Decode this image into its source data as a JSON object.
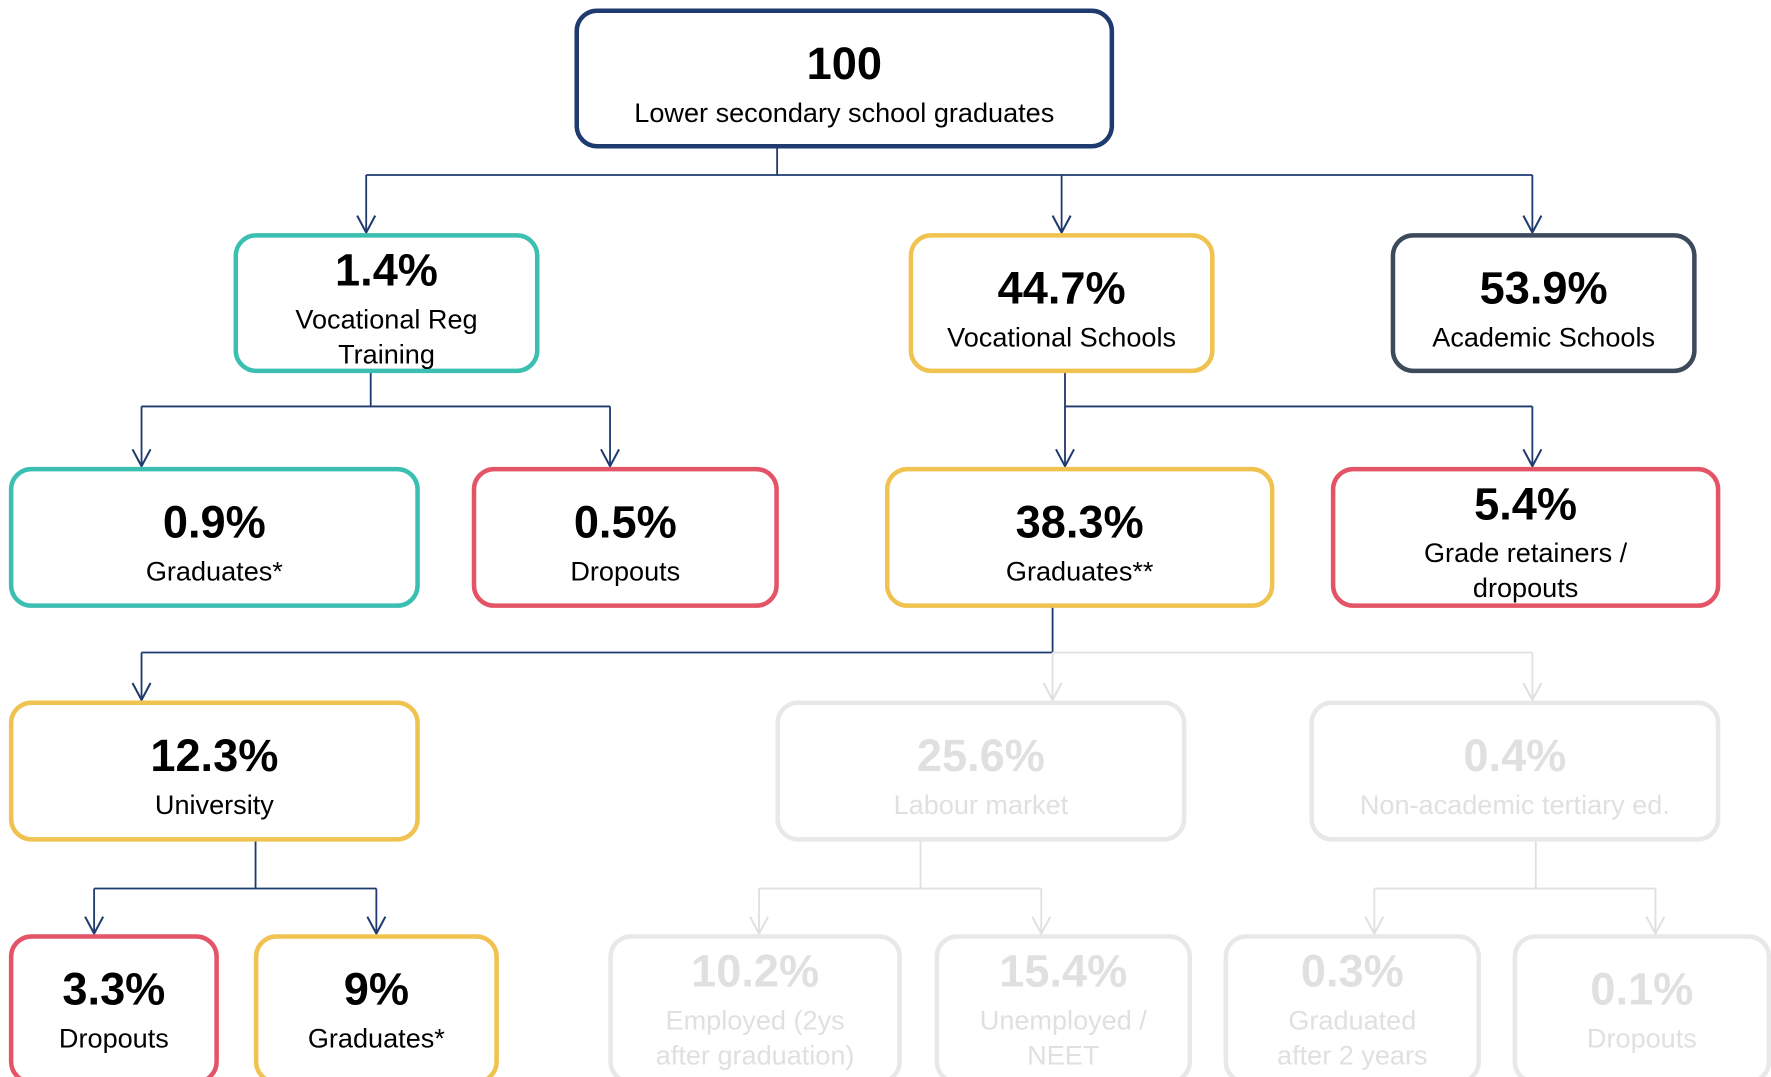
{
  "nodes": [
    {
      "value": "100",
      "label": [
        "Lower secondary school graduates"
      ],
      "color": "#1f3a6e",
      "text_color": "#000000"
    },
    {
      "value": "1.4%",
      "label": [
        "Vocational Reg",
        "Training"
      ],
      "color": "#3bbfb0",
      "text_color": "#000000"
    },
    {
      "value": "44.7%",
      "label": [
        "Vocational Schools"
      ],
      "color": "#f0c24f",
      "text_color": "#000000"
    },
    {
      "value": "53.9%",
      "label": [
        "Academic Schools"
      ],
      "color": "#3d4a5c",
      "text_color": "#000000"
    },
    {
      "value": "0.9%",
      "label": [
        "Graduates*"
      ],
      "color": "#3bbfb0",
      "text_color": "#000000"
    },
    {
      "value": "0.5%",
      "label": [
        "Dropouts"
      ],
      "color": "#e35466",
      "text_color": "#000000"
    },
    {
      "value": "38.3%",
      "label": [
        "Graduates**"
      ],
      "color": "#f0c24f",
      "text_color": "#000000"
    },
    {
      "value": "5.4%",
      "label": [
        "Grade retainers /",
        "dropouts"
      ],
      "color": "#e35466",
      "text_color": "#000000"
    },
    {
      "value": "12.3%",
      "label": [
        "University"
      ],
      "color": "#f0c24f",
      "text_color": "#000000"
    },
    {
      "value": "25.6%",
      "label": [
        "Labour market"
      ],
      "color": "#e8e8e8",
      "text_color": "#e0e0e0"
    },
    {
      "value": "0.4%",
      "label": [
        "Non-academic tertiary ed."
      ],
      "color": "#e8e8e8",
      "text_color": "#e0e0e0"
    },
    {
      "value": "3.3%",
      "label": [
        "Dropouts"
      ],
      "color": "#e35466",
      "text_color": "#000000"
    },
    {
      "value": "9%",
      "label": [
        "Graduates*"
      ],
      "color": "#f0c24f",
      "text_color": "#000000"
    },
    {
      "value": "10.2%",
      "label": [
        "Employed (2ys",
        "after graduation)"
      ],
      "color": "#e8e8e8",
      "text_color": "#e0e0e0"
    },
    {
      "value": "15.4%",
      "label": [
        "Unemployed /",
        "NEET"
      ],
      "color": "#e8e8e8",
      "text_color": "#e0e0e0"
    },
    {
      "value": "0.3%",
      "label": [
        "Graduated",
        "after 2 years"
      ],
      "color": "#e8e8e8",
      "text_color": "#e0e0e0"
    },
    {
      "value": "0.1%",
      "label": [
        "Dropouts"
      ],
      "color": "#e8e8e8",
      "text_color": "#e0e0e0"
    }
  ]
}
